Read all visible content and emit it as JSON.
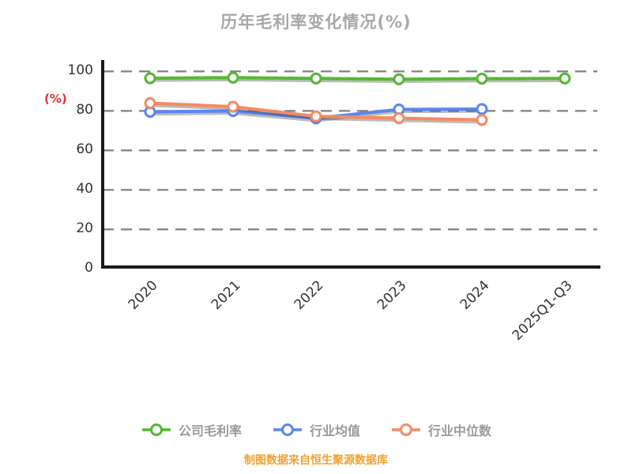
{
  "chart_data": {
    "type": "line",
    "title": "历年毛利率变化情况(%)",
    "ylabel": "(%)",
    "categories": [
      "2020",
      "2021",
      "2022",
      "2023",
      "2024",
      "2025Q1-Q3"
    ],
    "yticks": [
      0,
      20,
      40,
      60,
      80,
      100
    ],
    "ylim": [
      0,
      100
    ],
    "grid": "horizontal-dashed",
    "legend_position": "bottom",
    "series": [
      {
        "name": "公司毛利率",
        "color": "#55b832",
        "values": [
          95.6,
          95.9,
          95.5,
          95.1,
          95.4,
          95.5
        ]
      },
      {
        "name": "行业均值",
        "color": "#5a86f0",
        "values": [
          78.6,
          79.0,
          75.3,
          79.8,
          80.0,
          null
        ]
      },
      {
        "name": "行业中位数",
        "color": "#f58a62",
        "values": [
          83.0,
          81.2,
          76.3,
          75.4,
          74.5,
          null
        ]
      }
    ]
  },
  "footer": {
    "text": "制图数据来自恒生聚源数据库"
  },
  "colors": {
    "title": "#a8a8a8",
    "ylabel": "#e03030",
    "tick": "#333333",
    "axis": "#1a1a1a",
    "grid_shadow": "#808080",
    "grid_dash": "#ffffff",
    "legend_text": "#999999",
    "footer": "#f0a232"
  }
}
